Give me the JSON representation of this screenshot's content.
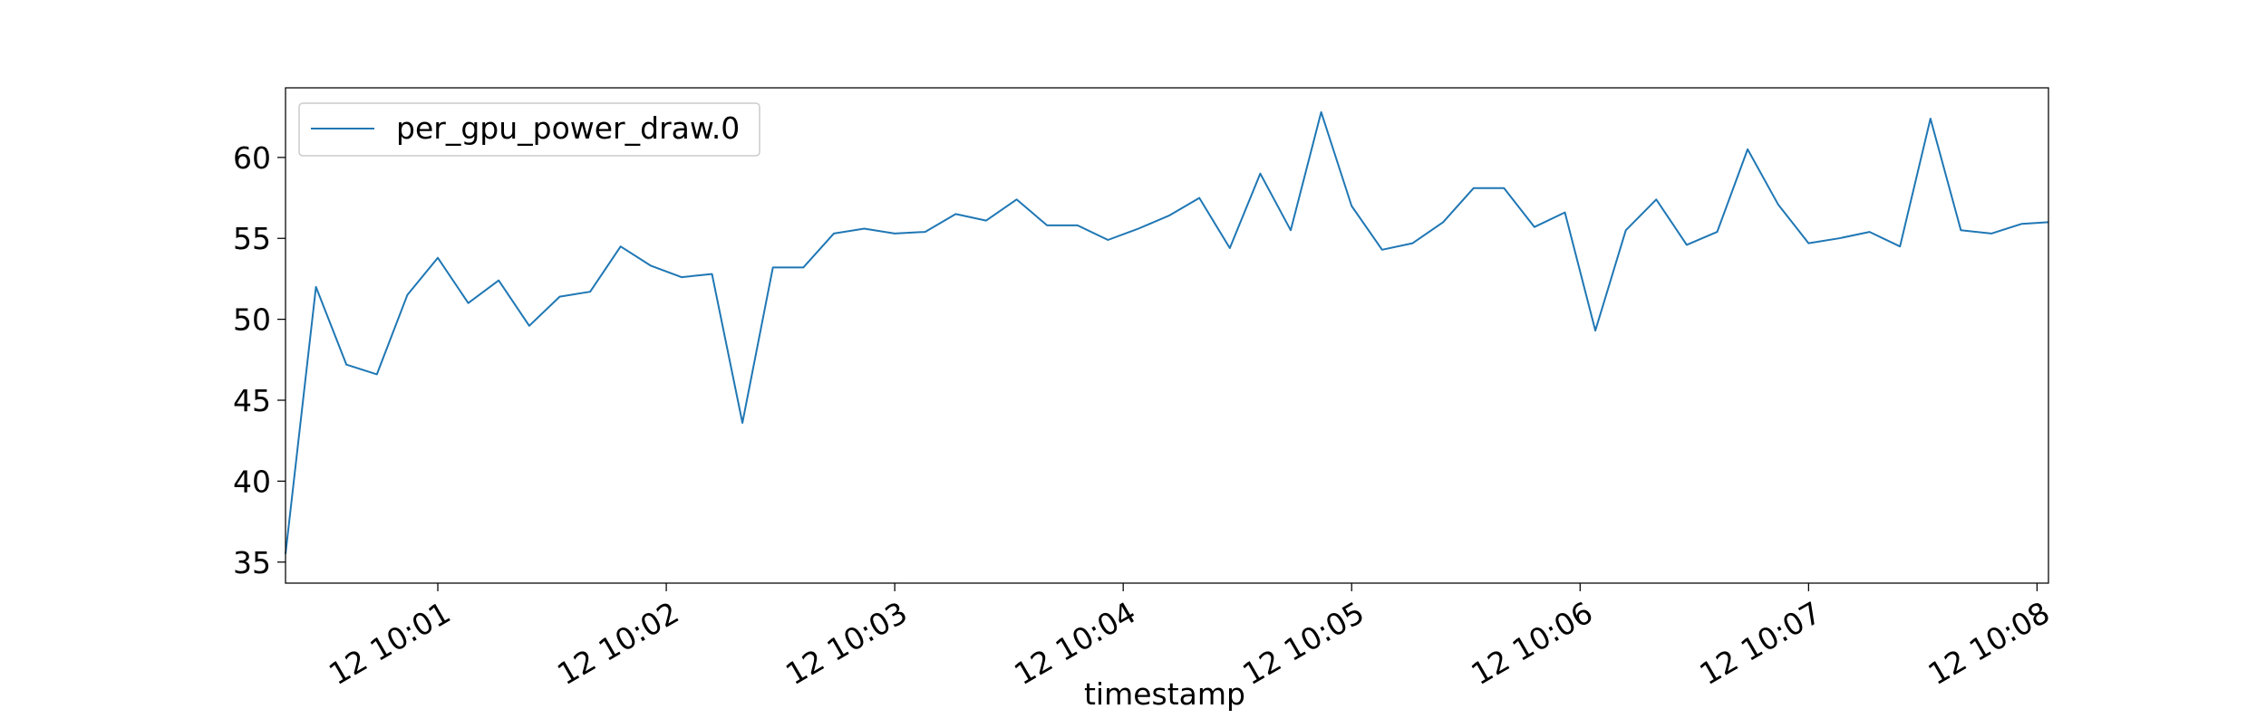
{
  "chart_data": {
    "type": "line",
    "xlabel": "timestamp",
    "ylabel": "",
    "title": "",
    "grid": false,
    "legend_position": "top-left",
    "x_ticks": [
      "12 10:01",
      "12 10:02",
      "12 10:03",
      "12 10:04",
      "12 10:05",
      "12 10:06",
      "12 10:07",
      "12 10:08"
    ],
    "y_ticks": [
      35,
      40,
      45,
      50,
      55,
      60
    ],
    "ylim": [
      33.7,
      64.3
    ],
    "xlim": [
      "10:00:20",
      "10:08:03"
    ],
    "series": [
      {
        "name": "per_gpu_power_draw.0",
        "color": "#1f77b4",
        "x": [
          "10:00:20",
          "10:00:28",
          "10:00:36",
          "10:00:44",
          "10:00:52",
          "10:01:00",
          "10:01:08",
          "10:01:16",
          "10:01:24",
          "10:01:32",
          "10:01:40",
          "10:01:48",
          "10:01:56",
          "10:02:04",
          "10:02:12",
          "10:02:20",
          "10:02:28",
          "10:02:36",
          "10:02:44",
          "10:02:52",
          "10:03:00",
          "10:03:08",
          "10:03:16",
          "10:03:24",
          "10:03:32",
          "10:03:40",
          "10:03:48",
          "10:03:56",
          "10:04:04",
          "10:04:12",
          "10:04:20",
          "10:04:28",
          "10:04:36",
          "10:04:44",
          "10:04:52",
          "10:05:00",
          "10:05:08",
          "10:05:16",
          "10:05:24",
          "10:05:32",
          "10:05:40",
          "10:05:48",
          "10:05:56",
          "10:06:04",
          "10:06:12",
          "10:06:20",
          "10:06:28",
          "10:06:36",
          "10:06:44",
          "10:06:52",
          "10:07:00",
          "10:07:08",
          "10:07:16",
          "10:07:24",
          "10:07:32",
          "10:07:40",
          "10:07:48",
          "10:07:56",
          "10:08:03"
        ],
        "values": [
          35.5,
          52.0,
          47.2,
          46.6,
          51.5,
          53.8,
          51.0,
          52.4,
          49.6,
          51.4,
          51.7,
          54.5,
          53.3,
          52.6,
          52.8,
          43.6,
          53.2,
          53.2,
          55.3,
          55.6,
          55.3,
          55.4,
          56.5,
          56.1,
          57.4,
          55.8,
          55.8,
          54.9,
          55.6,
          56.4,
          57.5,
          54.4,
          59.0,
          55.5,
          62.8,
          57.0,
          54.3,
          54.7,
          56.0,
          58.1,
          58.1,
          55.7,
          56.6,
          49.3,
          55.5,
          57.4,
          54.6,
          55.4,
          60.5,
          57.1,
          54.7,
          55.0,
          55.4,
          54.5,
          62.4,
          55.5,
          55.3,
          55.9,
          56.0
        ]
      }
    ]
  }
}
